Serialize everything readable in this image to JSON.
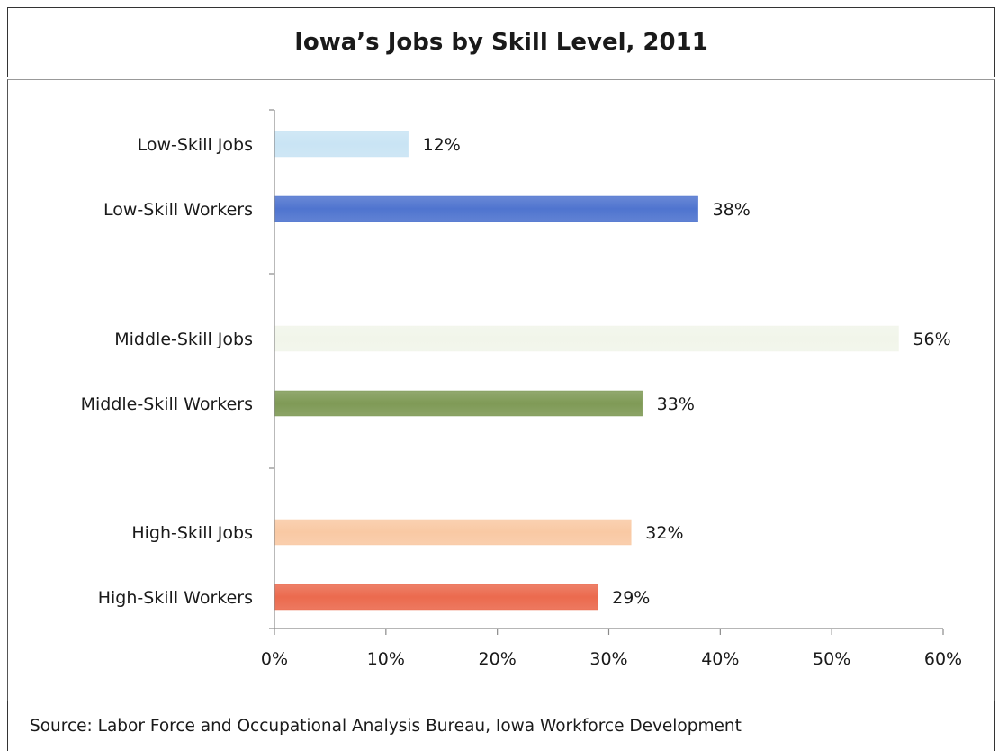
{
  "title": "Iowa’s Jobs by Skill Level, 2011",
  "source": "Source: Labor Force and Occupational Analysis Bureau, Iowa Workforce Development",
  "chart_data": {
    "type": "bar",
    "orientation": "horizontal",
    "title": "Iowa’s Jobs by Skill Level, 2011",
    "xlabel": "",
    "ylabel": "",
    "xlim": [
      0,
      60
    ],
    "x_ticks": [
      0,
      10,
      20,
      30,
      40,
      50,
      60
    ],
    "x_tick_labels": [
      "0%",
      "10%",
      "20%",
      "30%",
      "40%",
      "50%",
      "60%"
    ],
    "grid": false,
    "legend": "none",
    "categories": [
      "Low-Skill Jobs",
      "Low-Skill Workers",
      "Middle-Skill Jobs",
      "Middle-Skill Workers",
      "High-Skill Jobs",
      "High-Skill Workers"
    ],
    "values": [
      12,
      38,
      56,
      33,
      32,
      29
    ],
    "value_labels": [
      "12%",
      "38%",
      "56%",
      "33%",
      "32%",
      "29%"
    ],
    "colors": [
      "#c9e4f4",
      "#4f74cf",
      "#f1f5ea",
      "#7f9a56",
      "#f9c9a4",
      "#eb6a4e"
    ]
  }
}
